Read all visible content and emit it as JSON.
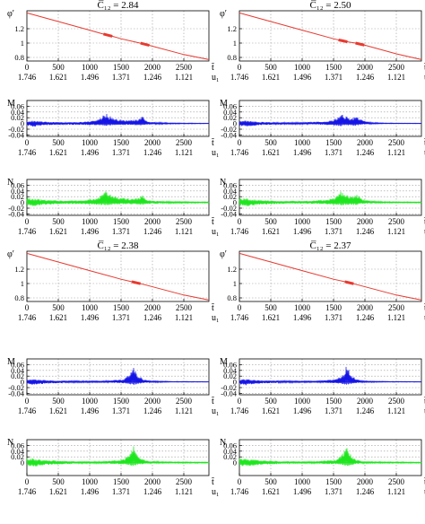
{
  "panels": [
    {
      "label": "C̅₁₂ = 2.84",
      "events": [
        1250,
        1840
      ]
    },
    {
      "label": "C̅₁₂ = 2.50",
      "events": [
        1610,
        1880
      ]
    },
    {
      "label": "C̅₁₂ = 2.38",
      "events": [
        1700
      ]
    },
    {
      "label": "C̅₁₂ = 2.37",
      "events": [
        1710
      ]
    }
  ],
  "colors": {
    "phi": "#e8392f",
    "M": "#1414e6",
    "N": "#1ee61e",
    "axis": "#000000",
    "grid": "#9a9a9a"
  },
  "axis": {
    "x_ticks": [
      0,
      500,
      1000,
      1500,
      2000,
      2500
    ],
    "u_ticks": [
      "1.746",
      "1.621",
      "1.496",
      "1.371",
      "1.246",
      "1.121"
    ],
    "x_label": "t̃",
    "u_label": "u₁",
    "xlim": [
      0,
      2900
    ]
  },
  "chart_data": [
    {
      "type": "line",
      "title": "C̅₁₂ = 2.84",
      "ylabel": "φ′",
      "ylim": [
        0.75,
        1.45
      ],
      "yticks": [
        "0.8",
        "1",
        "1.2"
      ],
      "x": [
        0,
        500,
        1000,
        1200,
        1250,
        1300,
        1500,
        1700,
        1800,
        1840,
        1900,
        2500,
        2900
      ],
      "series": [
        {
          "values": [
            1.42,
            1.3,
            1.18,
            1.13,
            1.12,
            1.11,
            1.06,
            1.02,
            1.0,
            0.995,
            0.98,
            0.84,
            0.77
          ]
        }
      ]
    },
    {
      "type": "line",
      "title": "",
      "ylabel": "M",
      "ylim": [
        -0.045,
        0.08
      ],
      "yticks": [
        "-0.04",
        "-0.02",
        "0",
        "0.02",
        "0.04",
        "0.06"
      ],
      "x": [
        0,
        100,
        300,
        600,
        900,
        1100,
        1200,
        1250,
        1320,
        1450,
        1600,
        1750,
        1800,
        1840,
        1880,
        1950,
        2100,
        2300,
        2900
      ],
      "series": [
        {
          "name": "upper",
          "values": [
            0.008,
            0.01,
            0.006,
            0.004,
            0.006,
            0.012,
            0.025,
            0.037,
            0.026,
            0.015,
            0.012,
            0.013,
            0.018,
            0.025,
            0.012,
            0.006,
            0.004,
            0.002,
            0.001
          ]
        },
        {
          "name": "lower",
          "values": [
            -0.008,
            -0.012,
            -0.006,
            -0.004,
            -0.005,
            -0.006,
            -0.007,
            -0.008,
            -0.007,
            -0.006,
            -0.005,
            -0.006,
            -0.006,
            -0.007,
            -0.005,
            -0.004,
            -0.003,
            -0.002,
            -0.001
          ]
        }
      ]
    },
    {
      "type": "line",
      "title": "",
      "ylabel": "N",
      "ylim": [
        -0.045,
        0.08
      ],
      "yticks": [
        "-0.04",
        "-0.02",
        "0",
        "0.02",
        "0.04",
        "0.06"
      ],
      "x": [
        0,
        100,
        300,
        600,
        900,
        1100,
        1200,
        1250,
        1320,
        1450,
        1600,
        1750,
        1800,
        1840,
        1880,
        1950,
        2100,
        2300,
        2900
      ],
      "series": [
        {
          "name": "upper",
          "values": [
            0.016,
            0.014,
            0.009,
            0.006,
            0.008,
            0.014,
            0.028,
            0.042,
            0.03,
            0.018,
            0.014,
            0.016,
            0.02,
            0.028,
            0.014,
            0.007,
            0.005,
            0.003,
            0.002
          ]
        },
        {
          "name": "lower",
          "values": [
            -0.01,
            -0.014,
            -0.008,
            -0.005,
            -0.006,
            -0.008,
            -0.009,
            -0.01,
            -0.008,
            -0.007,
            -0.006,
            -0.007,
            -0.008,
            -0.009,
            -0.006,
            -0.005,
            -0.004,
            -0.003,
            -0.002
          ]
        }
      ]
    },
    {
      "type": "line",
      "title": "C̅₁₂ = 2.50",
      "ylabel": "φ′",
      "ylim": [
        0.75,
        1.45
      ],
      "yticks": [
        "0.8",
        "1",
        "1.2"
      ],
      "x": [
        0,
        500,
        1000,
        1500,
        1600,
        1650,
        1700,
        1850,
        1900,
        2000,
        2500,
        2900
      ],
      "series": [
        {
          "values": [
            1.42,
            1.3,
            1.18,
            1.06,
            1.04,
            1.03,
            1.02,
            1.0,
            0.99,
            0.97,
            0.85,
            0.77
          ]
        }
      ]
    },
    {
      "type": "line",
      "title": "",
      "ylabel": "M",
      "ylim": [
        -0.045,
        0.08
      ],
      "yticks": [
        "-0.04",
        "-0.02",
        "0",
        "0.02",
        "0.04",
        "0.06"
      ],
      "x": [
        0,
        100,
        300,
        600,
        1000,
        1400,
        1550,
        1610,
        1680,
        1760,
        1840,
        1880,
        1950,
        2100,
        2300,
        2900
      ],
      "series": [
        {
          "name": "upper",
          "values": [
            0.008,
            0.01,
            0.006,
            0.004,
            0.004,
            0.008,
            0.018,
            0.035,
            0.028,
            0.02,
            0.024,
            0.026,
            0.012,
            0.004,
            0.002,
            0.001
          ]
        },
        {
          "name": "lower",
          "values": [
            -0.008,
            -0.012,
            -0.006,
            -0.004,
            -0.003,
            -0.005,
            -0.008,
            -0.01,
            -0.008,
            -0.007,
            -0.008,
            -0.007,
            -0.004,
            -0.002,
            -0.001,
            -0.001
          ]
        }
      ]
    },
    {
      "type": "line",
      "title": "",
      "ylabel": "N",
      "ylim": [
        -0.045,
        0.08
      ],
      "yticks": [
        "-0.04",
        "-0.02",
        "0",
        "0.02",
        "0.04",
        "0.06"
      ],
      "x": [
        0,
        100,
        300,
        600,
        1000,
        1400,
        1550,
        1610,
        1680,
        1760,
        1840,
        1880,
        1950,
        2100,
        2300,
        2900
      ],
      "series": [
        {
          "name": "upper",
          "values": [
            0.016,
            0.014,
            0.009,
            0.006,
            0.005,
            0.01,
            0.022,
            0.04,
            0.03,
            0.022,
            0.026,
            0.028,
            0.013,
            0.005,
            0.003,
            0.002
          ]
        },
        {
          "name": "lower",
          "values": [
            -0.01,
            -0.014,
            -0.008,
            -0.005,
            -0.004,
            -0.006,
            -0.009,
            -0.011,
            -0.009,
            -0.008,
            -0.009,
            -0.008,
            -0.005,
            -0.003,
            -0.002,
            -0.002
          ]
        }
      ]
    },
    {
      "type": "line",
      "title": "C̅₁₂ = 2.38",
      "ylabel": "φ′",
      "ylim": [
        0.75,
        1.45
      ],
      "yticks": [
        "0.8",
        "1",
        "1.2"
      ],
      "x": [
        0,
        500,
        1000,
        1500,
        1650,
        1700,
        1750,
        1850,
        2500,
        2900
      ],
      "series": [
        {
          "values": [
            1.42,
            1.3,
            1.18,
            1.06,
            1.03,
            1.02,
            1.01,
            0.99,
            0.84,
            0.77
          ]
        }
      ]
    },
    {
      "type": "line",
      "title": "",
      "ylabel": "M",
      "ylim": [
        -0.045,
        0.08
      ],
      "yticks": [
        "-0.04",
        "-0.02",
        "0",
        "0.02",
        "0.04",
        "0.06"
      ],
      "x": [
        0,
        100,
        300,
        700,
        1200,
        1550,
        1650,
        1700,
        1760,
        1850,
        1950,
        2100,
        2300,
        2900
      ],
      "series": [
        {
          "name": "upper",
          "values": [
            0.008,
            0.01,
            0.006,
            0.004,
            0.003,
            0.01,
            0.035,
            0.062,
            0.03,
            0.01,
            0.004,
            0.003,
            0.002,
            0.001
          ]
        },
        {
          "name": "lower",
          "values": [
            -0.008,
            -0.012,
            -0.006,
            -0.003,
            -0.002,
            -0.005,
            -0.009,
            -0.012,
            -0.008,
            -0.004,
            -0.002,
            -0.002,
            -0.001,
            -0.001
          ]
        }
      ]
    },
    {
      "type": "line",
      "title": "",
      "ylabel": "N",
      "ylim": [
        -0.045,
        0.08
      ],
      "yticks": [
        "0",
        "0.02",
        "0.04",
        "0.06"
      ],
      "x": [
        0,
        100,
        300,
        700,
        1200,
        1550,
        1650,
        1700,
        1760,
        1850,
        1950,
        2100,
        2300,
        2900
      ],
      "series": [
        {
          "name": "upper",
          "values": [
            0.016,
            0.014,
            0.009,
            0.005,
            0.004,
            0.012,
            0.04,
            0.065,
            0.032,
            0.012,
            0.005,
            0.004,
            0.003,
            0.002
          ]
        },
        {
          "name": "lower",
          "values": [
            -0.01,
            -0.014,
            -0.008,
            -0.004,
            -0.003,
            -0.006,
            -0.01,
            -0.012,
            -0.009,
            -0.005,
            -0.003,
            -0.002,
            -0.002,
            -0.002
          ]
        }
      ]
    },
    {
      "type": "line",
      "title": "C̅₁₂ = 2.37",
      "ylabel": "φ′",
      "ylim": [
        0.75,
        1.45
      ],
      "yticks": [
        "0.8",
        "1",
        "1.2"
      ],
      "x": [
        0,
        500,
        1000,
        1500,
        1660,
        1710,
        1760,
        1850,
        2500,
        2900
      ],
      "series": [
        {
          "values": [
            1.42,
            1.3,
            1.18,
            1.06,
            1.03,
            1.02,
            1.01,
            0.99,
            0.84,
            0.77
          ]
        }
      ]
    },
    {
      "type": "line",
      "title": "",
      "ylabel": "M",
      "ylim": [
        -0.045,
        0.08
      ],
      "yticks": [
        "-0.04",
        "-0.02",
        "0",
        "0.02",
        "0.04",
        "0.06"
      ],
      "x": [
        0,
        100,
        300,
        700,
        1200,
        1560,
        1660,
        1710,
        1770,
        1860,
        1950,
        2100,
        2300,
        2900
      ],
      "series": [
        {
          "name": "upper",
          "values": [
            0.008,
            0.01,
            0.006,
            0.004,
            0.003,
            0.01,
            0.033,
            0.062,
            0.03,
            0.01,
            0.004,
            0.003,
            0.002,
            0.001
          ]
        },
        {
          "name": "lower",
          "values": [
            -0.008,
            -0.012,
            -0.006,
            -0.003,
            -0.002,
            -0.005,
            -0.009,
            -0.012,
            -0.008,
            -0.004,
            -0.002,
            -0.002,
            -0.001,
            -0.001
          ]
        }
      ]
    },
    {
      "type": "line",
      "title": "",
      "ylabel": "N",
      "ylim": [
        -0.045,
        0.08
      ],
      "yticks": [
        "0",
        "0.02",
        "0.04",
        "0.06"
      ],
      "x": [
        0,
        100,
        300,
        700,
        1200,
        1560,
        1660,
        1710,
        1770,
        1860,
        1950,
        2100,
        2300,
        2900
      ],
      "series": [
        {
          "name": "upper",
          "values": [
            0.016,
            0.014,
            0.009,
            0.005,
            0.004,
            0.012,
            0.04,
            0.066,
            0.032,
            0.012,
            0.005,
            0.004,
            0.003,
            0.002
          ]
        },
        {
          "name": "lower",
          "values": [
            -0.01,
            -0.014,
            -0.008,
            -0.004,
            -0.003,
            -0.006,
            -0.01,
            -0.012,
            -0.009,
            -0.005,
            -0.003,
            -0.002,
            -0.002,
            -0.002
          ]
        }
      ]
    }
  ]
}
